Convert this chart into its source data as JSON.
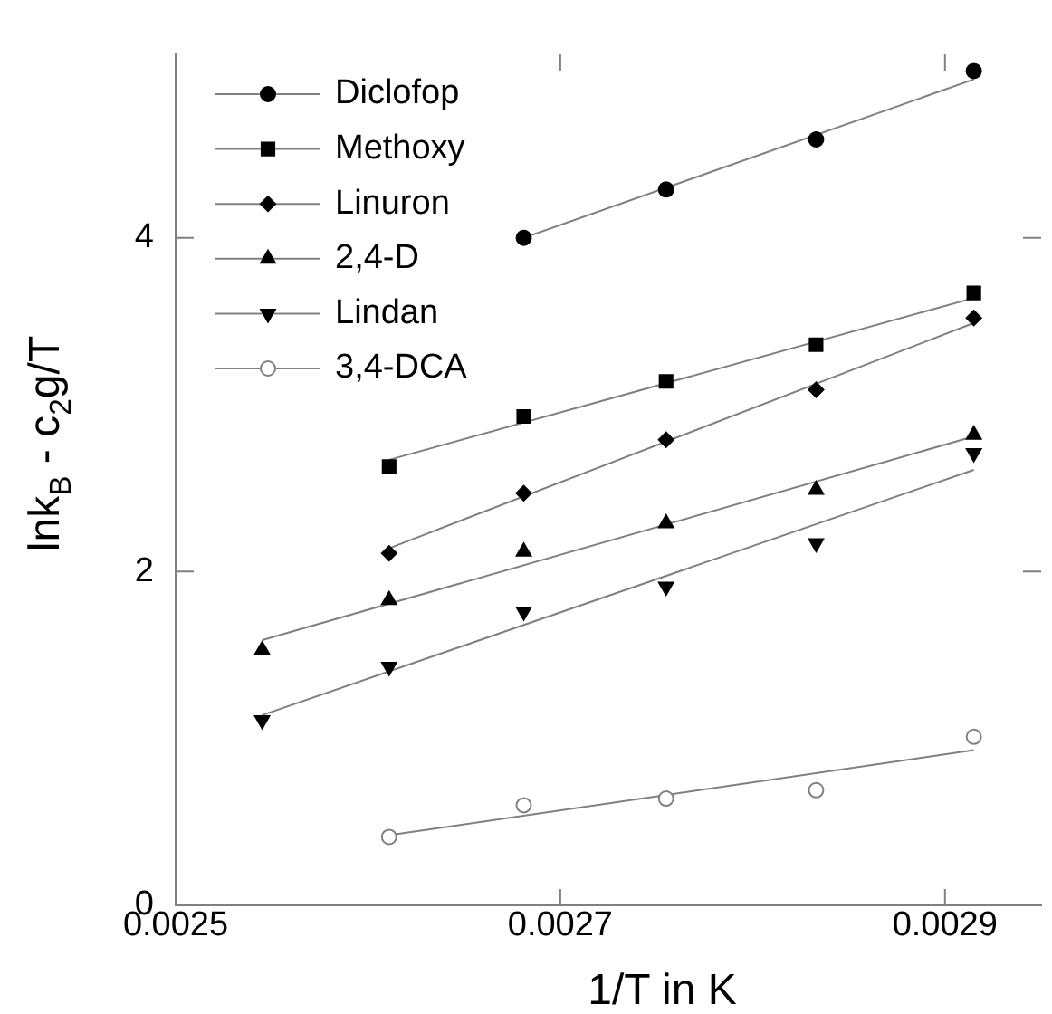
{
  "chart_data": {
    "type": "scatter",
    "xlabel": "1/T in K",
    "ylabel": "lnk$_{B}$ - c$_{2}$g/T",
    "xlim": [
      0.0025,
      0.00295
    ],
    "xticks": [
      0.0025,
      0.0027,
      0.0029
    ],
    "ylim": [
      0,
      5.1
    ],
    "yticks": [
      0,
      2,
      4
    ],
    "grid": false,
    "legend": "top left",
    "series": [
      {
        "name": "Diclofop",
        "marker": "circle",
        "color": "#000000",
        "x": [
          0.002681,
          0.002755,
          0.002833,
          0.002915
        ],
        "values": [
          4.0,
          4.29,
          4.59,
          5.0
        ]
      },
      {
        "name": "Methoxy",
        "marker": "square",
        "color": "#000000",
        "x": [
          0.002611,
          0.002681,
          0.002755,
          0.002833,
          0.002915
        ],
        "values": [
          2.63,
          2.93,
          3.14,
          3.36,
          3.67
        ]
      },
      {
        "name": "Linuron",
        "marker": "diamond",
        "color": "#000000",
        "x": [
          0.002611,
          0.002681,
          0.002755,
          0.002833,
          0.002915
        ],
        "values": [
          2.11,
          2.47,
          2.79,
          3.09,
          3.52
        ]
      },
      {
        "name": "2,4-D",
        "marker": "triangle",
        "color": "#000000",
        "x": [
          0.002545,
          0.002611,
          0.002681,
          0.002755,
          0.002833,
          0.002915
        ],
        "values": [
          1.53,
          1.83,
          2.12,
          2.29,
          2.49,
          2.82
        ]
      },
      {
        "name": "Lindan",
        "marker": "triangle-down",
        "color": "#000000",
        "x": [
          0.002545,
          0.002611,
          0.002681,
          0.002755,
          0.002833,
          0.002915
        ],
        "values": [
          1.11,
          1.43,
          1.76,
          1.91,
          2.17,
          2.71
        ]
      },
      {
        "name": "3,4-DCA",
        "marker": "open-circle",
        "color": "#808080",
        "x": [
          0.002611,
          0.002681,
          0.002755,
          0.002833,
          0.002915
        ],
        "values": [
          0.41,
          0.6,
          0.64,
          0.69,
          1.01
        ]
      },
      {
        "type": "line",
        "marker": "none",
        "color": "#808080",
        "x": [
          0.002681,
          0.002915
        ],
        "values": [
          4.0,
          4.95
        ]
      },
      {
        "type": "line",
        "marker": "none",
        "color": "#808080",
        "x": [
          0.002611,
          0.002915
        ],
        "values": [
          2.67,
          3.64
        ]
      },
      {
        "type": "line",
        "marker": "none",
        "color": "#808080",
        "x": [
          0.002611,
          0.002915
        ],
        "values": [
          2.14,
          3.49
        ]
      },
      {
        "type": "line",
        "marker": "none",
        "color": "#808080",
        "x": [
          0.002545,
          0.002915
        ],
        "values": [
          1.59,
          2.81
        ]
      },
      {
        "type": "line",
        "marker": "none",
        "color": "#808080",
        "x": [
          0.002545,
          0.002915
        ],
        "values": [
          1.14,
          2.61
        ]
      },
      {
        "type": "line",
        "marker": "none",
        "color": "#808080",
        "x": [
          0.002611,
          0.002915
        ],
        "values": [
          0.42,
          0.93
        ]
      }
    ]
  }
}
